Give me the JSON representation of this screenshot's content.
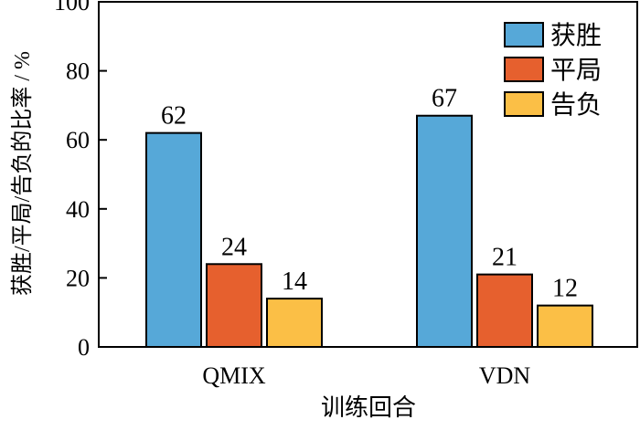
{
  "chart_data": {
    "type": "bar",
    "title": "",
    "xlabel": "训练回合",
    "ylabel": "获胜/平局/告负的比率 / %",
    "categories": [
      "QMIX",
      "VDN"
    ],
    "series": [
      {
        "name": "获胜",
        "values": [
          62,
          67
        ],
        "color": "#56a8d8"
      },
      {
        "name": "平局",
        "values": [
          24,
          21
        ],
        "color": "#e6602e"
      },
      {
        "name": "告负",
        "values": [
          14,
          12
        ],
        "color": "#fbbf46"
      }
    ],
    "ylim": [
      0,
      100
    ],
    "yticks": [
      0,
      20,
      40,
      60,
      80,
      100
    ],
    "grid": false,
    "legend_position": "top-right",
    "data_labels": true
  }
}
